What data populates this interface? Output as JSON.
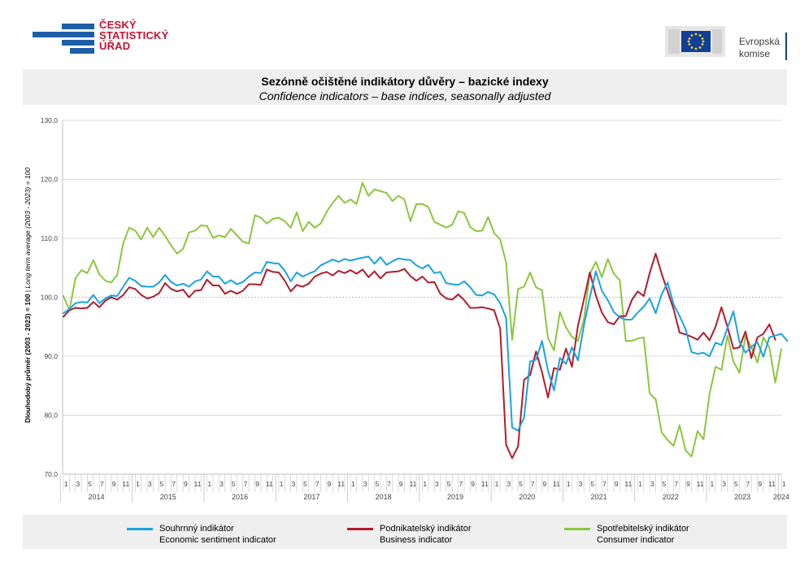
{
  "header": {
    "czso_logo": [
      "ČESKÝ",
      "STATISTICKÝ",
      "ÚŘAD"
    ],
    "ec_logo": [
      "Evropská",
      "komise"
    ]
  },
  "title": {
    "cz": "Sezónně očištěné indikátory důvěry – bazické indexy",
    "en": "Confidence indicators – base indices, seasonally adjusted"
  },
  "yaxis": {
    "label_bold": "Dlouhodobý průměr (2003 - 2023) = 100",
    "label_sep": " | ",
    "label_italic": "Long term average (2003 - 2023) = 100"
  },
  "legend": [
    {
      "cz": "Souhrnný indikátor",
      "en": "Economic sentiment indicator",
      "color": "#1aa3e0"
    },
    {
      "cz": "Podnikatelský indikátor",
      "en": "Business indicator",
      "color": "#b11c2e"
    },
    {
      "cz": "Spotřebitelský indikátor",
      "en": "Consumer indicator",
      "color": "#8cc63f"
    }
  ],
  "chart_data": {
    "type": "line",
    "ylim": [
      70,
      130
    ],
    "yticks": [
      "70,0",
      "80,0",
      "90,0",
      "100,0",
      "110,0",
      "120,0",
      "130,0"
    ],
    "x_month_labels": [
      "1",
      "3",
      "5",
      "7",
      "9",
      "11"
    ],
    "x_year_labels": [
      "2014",
      "2015",
      "2016",
      "2017",
      "2018",
      "2019",
      "2020",
      "2021",
      "2022",
      "2023",
      "2024"
    ],
    "x_start": "2014-01",
    "x_end": "2024-01",
    "grid": "horizontal",
    "series": [
      {
        "name": "Souhrnný indikátor",
        "color": "#1aa3e0",
        "values": [
          97.3,
          98.0,
          99.0,
          99.2,
          99.1,
          100.4,
          99.0,
          99.8,
          100.3,
          100.2,
          101.8,
          103.3,
          102.8,
          101.9,
          101.8,
          101.8,
          102.5,
          103.8,
          102.6,
          102.0,
          102.3,
          101.8,
          102.7,
          103.0,
          104.4,
          103.5,
          103.5,
          102.3,
          102.9,
          102.2,
          102.6,
          103.5,
          104.2,
          104.1,
          106.0,
          105.8,
          105.7,
          104.5,
          102.7,
          104.2,
          103.5,
          104.0,
          104.4,
          105.4,
          105.9,
          106.4,
          106.0,
          106.5,
          106.2,
          106.5,
          106.7,
          106.9,
          105.7,
          106.8,
          105.5,
          106.1,
          106.6,
          106.4,
          106.3,
          105.4,
          104.9,
          105.5,
          104.1,
          104.3,
          102.4,
          102.2,
          102.1,
          102.7,
          101.7,
          100.4,
          100.3,
          100.9,
          100.5,
          99.0,
          96.5,
          77.9,
          77.4,
          79.6,
          89.1,
          89.4,
          92.6,
          87.6,
          84.2,
          89.7,
          88.7,
          91.5,
          89.3,
          95.2,
          100.0,
          104.4,
          101.1,
          99.5,
          97.5,
          96.6,
          96.2,
          96.2,
          97.4,
          98.4,
          99.8,
          97.3,
          100.5,
          102.5,
          98.8,
          96.8,
          94.6,
          90.7,
          90.4,
          90.6,
          90.0,
          92.3,
          91.9,
          94.8,
          97.6,
          92.5,
          90.6,
          91.6,
          92.4,
          89.9,
          93.2,
          93.5,
          93.8,
          92.6
        ]
      },
      {
        "name": "Podnikatelský indikátor",
        "color": "#b11c2e",
        "values": [
          96.7,
          97.8,
          98.2,
          98.1,
          98.2,
          99.2,
          98.3,
          99.4,
          100.0,
          99.6,
          100.4,
          101.7,
          101.4,
          100.4,
          99.8,
          100.1,
          100.7,
          102.4,
          101.4,
          101.0,
          101.3,
          100.0,
          101.1,
          101.2,
          103.0,
          102.0,
          102.0,
          100.6,
          101.1,
          100.6,
          101.1,
          102.2,
          102.2,
          102.1,
          104.7,
          104.3,
          104.2,
          102.8,
          101.0,
          102.1,
          101.8,
          102.3,
          103.5,
          104.0,
          104.3,
          103.7,
          104.5,
          104.1,
          104.6,
          104.0,
          104.7,
          103.4,
          104.4,
          103.2,
          104.2,
          104.3,
          104.4,
          104.8,
          103.6,
          102.8,
          103.5,
          102.5,
          102.6,
          100.6,
          99.8,
          99.6,
          100.5,
          99.5,
          98.2,
          98.2,
          98.3,
          98.1,
          97.8,
          94.7,
          75.0,
          72.7,
          74.7,
          86.0,
          86.8,
          90.8,
          87.3,
          83.0,
          88.0,
          87.7,
          91.3,
          88.2,
          95.1,
          99.6,
          104.2,
          100.3,
          97.4,
          95.8,
          95.4,
          96.8,
          96.8,
          99.5,
          101.0,
          100.2,
          104.1,
          107.4,
          104.0,
          101.0,
          98.0,
          94.0,
          93.7,
          93.3,
          92.8,
          94.0,
          92.7,
          95.0,
          98.3,
          95.0,
          91.3,
          91.5,
          94.2,
          89.7,
          93.2,
          93.8,
          95.4,
          92.8
        ]
      },
      {
        "name": "Spotřebitelský indikátor",
        "color": "#8cc63f",
        "values": [
          100.2,
          97.8,
          103.2,
          104.6,
          104.1,
          106.3,
          103.9,
          102.8,
          102.5,
          103.8,
          109.2,
          111.8,
          111.3,
          109.8,
          111.8,
          110.2,
          111.8,
          110.4,
          108.8,
          107.4,
          108.2,
          111.0,
          111.3,
          112.2,
          112.1,
          110.1,
          110.5,
          110.2,
          111.6,
          110.5,
          109.4,
          109.1,
          113.9,
          113.5,
          112.5,
          113.3,
          113.5,
          112.9,
          111.8,
          114.4,
          111.2,
          112.8,
          111.8,
          112.5,
          114.5,
          116.0,
          117.2,
          116.0,
          116.6,
          115.8,
          119.4,
          117.2,
          118.3,
          118.0,
          117.7,
          116.3,
          117.2,
          116.6,
          112.9,
          115.8,
          115.8,
          115.3,
          112.8,
          112.3,
          111.8,
          112.3,
          114.6,
          114.3,
          111.9,
          111.2,
          111.3,
          113.6,
          110.9,
          109.8,
          105.9,
          92.8,
          101.4,
          101.8,
          104.2,
          101.7,
          101.2,
          93.1,
          91.0,
          97.5,
          94.9,
          93.3,
          92.6,
          96.2,
          104.0,
          106.0,
          103.4,
          106.5,
          104.0,
          102.9,
          92.6,
          92.6,
          93.0,
          93.2,
          83.7,
          82.7,
          77.1,
          75.8,
          74.8,
          78.3,
          74.0,
          73.0,
          77.3,
          75.9,
          83.6,
          88.2,
          87.7,
          93.5,
          89.1,
          87.2,
          93.4,
          91.6,
          88.9,
          93.2,
          91.5,
          85.5,
          91.2
        ]
      }
    ]
  }
}
